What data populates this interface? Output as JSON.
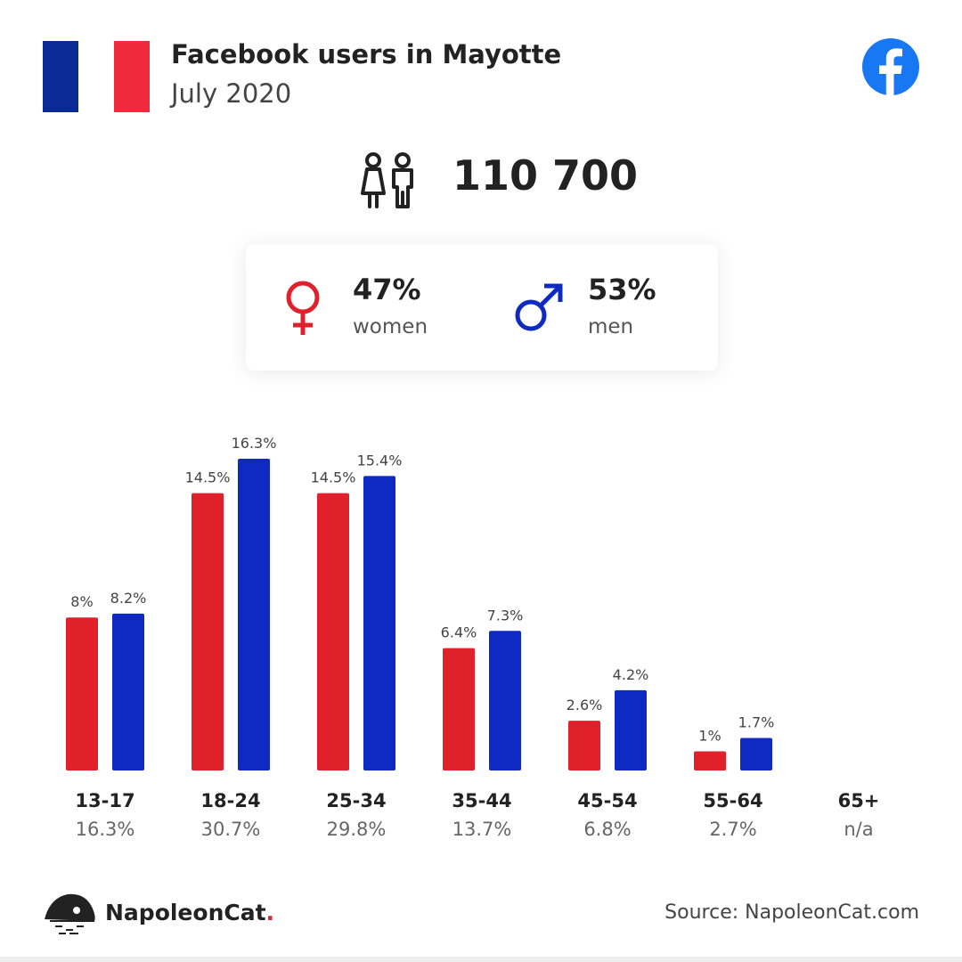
{
  "header": {
    "title": "Facebook users in Mayotte",
    "subtitle": "July 2020",
    "flag_colors": [
      "#0a2a96",
      "#ffffff",
      "#ee2a3c"
    ],
    "logo_icon": "facebook-logo-icon"
  },
  "total": {
    "value": "110 700",
    "icon": "users-icon"
  },
  "gender": {
    "women": {
      "percent": "47%",
      "label": "women",
      "icon": "female-symbol-icon",
      "color": "#e0202a"
    },
    "men": {
      "percent": "53%",
      "label": "men",
      "icon": "male-symbol-icon",
      "color": "#0f2ac2"
    }
  },
  "chart_data": {
    "type": "bar",
    "categories": [
      "13-17",
      "18-24",
      "25-34",
      "35-44",
      "45-54",
      "55-64",
      "65+"
    ],
    "category_totals": [
      "16.3%",
      "30.7%",
      "29.8%",
      "13.7%",
      "6.8%",
      "2.7%",
      "n/a"
    ],
    "series": [
      {
        "values": [
          8,
          14.5,
          14.5,
          6.4,
          2.6,
          1,
          null
        ],
        "labels": [
          "8%",
          "14.5%",
          "14.5%",
          "6.4%",
          "2.6%",
          "1%",
          ""
        ],
        "color": "#e0202a"
      },
      {
        "values": [
          8.2,
          16.3,
          15.4,
          7.3,
          4.2,
          1.7,
          null
        ],
        "labels": [
          "8.2%",
          "16.3%",
          "15.4%",
          "7.3%",
          "4.2%",
          "1.7%",
          ""
        ],
        "color": "#0f2ac2"
      }
    ],
    "ylim": [
      0,
      16.3
    ],
    "legend": "none",
    "grid": false
  },
  "footer": {
    "brand_name": "NapoleonCat",
    "brand_dot": ".",
    "brand_icon": "napoleoncat-logo-icon",
    "source": "Source: NapoleonCat.com"
  }
}
